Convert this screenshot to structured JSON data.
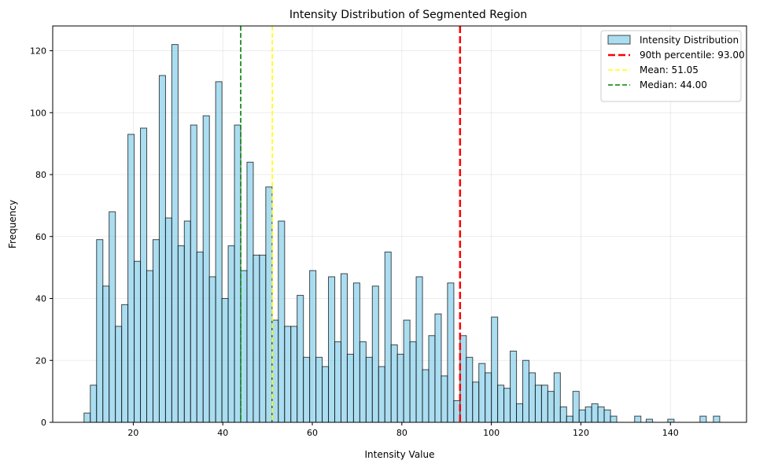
{
  "chart_data": {
    "type": "bar",
    "title": "Intensity Distribution of Segmented Region",
    "xlabel": "Intensity Value",
    "ylabel": "Frequency",
    "xlim": [
      2,
      157
    ],
    "ylim": [
      0,
      128
    ],
    "xticks": [
      20,
      40,
      60,
      80,
      100,
      120,
      140
    ],
    "yticks": [
      0,
      20,
      40,
      60,
      80,
      100,
      120
    ],
    "grid": true,
    "legend_position": "top-right",
    "bin_width": 1.41,
    "series": [
      {
        "name": "Intensity Distribution",
        "color": "#87ceeb",
        "edge_color": "#000000",
        "bins": [
          {
            "x": 9.0,
            "count": 3
          },
          {
            "x": 10.4,
            "count": 12
          },
          {
            "x": 11.8,
            "count": 59
          },
          {
            "x": 13.2,
            "count": 44
          },
          {
            "x": 14.6,
            "count": 68
          },
          {
            "x": 16.0,
            "count": 31
          },
          {
            "x": 17.4,
            "count": 38
          },
          {
            "x": 18.8,
            "count": 93
          },
          {
            "x": 20.2,
            "count": 52
          },
          {
            "x": 21.6,
            "count": 95
          },
          {
            "x": 23.0,
            "count": 49
          },
          {
            "x": 24.4,
            "count": 59
          },
          {
            "x": 25.8,
            "count": 112
          },
          {
            "x": 27.2,
            "count": 66
          },
          {
            "x": 28.6,
            "count": 122
          },
          {
            "x": 30.0,
            "count": 57
          },
          {
            "x": 31.4,
            "count": 65
          },
          {
            "x": 32.8,
            "count": 96
          },
          {
            "x": 34.2,
            "count": 55
          },
          {
            "x": 35.6,
            "count": 99
          },
          {
            "x": 37.0,
            "count": 47
          },
          {
            "x": 38.4,
            "count": 110
          },
          {
            "x": 39.8,
            "count": 40
          },
          {
            "x": 41.2,
            "count": 57
          },
          {
            "x": 42.6,
            "count": 96
          },
          {
            "x": 44.0,
            "count": 49
          },
          {
            "x": 45.4,
            "count": 84
          },
          {
            "x": 46.8,
            "count": 54
          },
          {
            "x": 48.2,
            "count": 54
          },
          {
            "x": 49.6,
            "count": 76
          },
          {
            "x": 51.0,
            "count": 33
          },
          {
            "x": 52.4,
            "count": 65
          },
          {
            "x": 53.8,
            "count": 31
          },
          {
            "x": 55.2,
            "count": 31
          },
          {
            "x": 56.6,
            "count": 41
          },
          {
            "x": 58.0,
            "count": 21
          },
          {
            "x": 59.4,
            "count": 49
          },
          {
            "x": 60.8,
            "count": 21
          },
          {
            "x": 62.2,
            "count": 18
          },
          {
            "x": 63.6,
            "count": 47
          },
          {
            "x": 65.0,
            "count": 26
          },
          {
            "x": 66.4,
            "count": 48
          },
          {
            "x": 67.8,
            "count": 22
          },
          {
            "x": 69.2,
            "count": 45
          },
          {
            "x": 70.6,
            "count": 26
          },
          {
            "x": 72.0,
            "count": 21
          },
          {
            "x": 73.4,
            "count": 44
          },
          {
            "x": 74.8,
            "count": 18
          },
          {
            "x": 76.2,
            "count": 55
          },
          {
            "x": 77.6,
            "count": 25
          },
          {
            "x": 79.0,
            "count": 22
          },
          {
            "x": 80.4,
            "count": 33
          },
          {
            "x": 81.8,
            "count": 26
          },
          {
            "x": 83.2,
            "count": 47
          },
          {
            "x": 84.6,
            "count": 17
          },
          {
            "x": 86.0,
            "count": 28
          },
          {
            "x": 87.4,
            "count": 35
          },
          {
            "x": 88.8,
            "count": 15
          },
          {
            "x": 90.2,
            "count": 45
          },
          {
            "x": 91.6,
            "count": 7
          },
          {
            "x": 93.0,
            "count": 28
          },
          {
            "x": 94.4,
            "count": 21
          },
          {
            "x": 95.8,
            "count": 13
          },
          {
            "x": 97.2,
            "count": 19
          },
          {
            "x": 98.6,
            "count": 16
          },
          {
            "x": 100.0,
            "count": 34
          },
          {
            "x": 101.4,
            "count": 12
          },
          {
            "x": 102.8,
            "count": 11
          },
          {
            "x": 104.2,
            "count": 23
          },
          {
            "x": 105.6,
            "count": 6
          },
          {
            "x": 107.0,
            "count": 20
          },
          {
            "x": 108.4,
            "count": 16
          },
          {
            "x": 109.8,
            "count": 12
          },
          {
            "x": 111.2,
            "count": 12
          },
          {
            "x": 112.6,
            "count": 10
          },
          {
            "x": 114.0,
            "count": 16
          },
          {
            "x": 115.4,
            "count": 5
          },
          {
            "x": 116.8,
            "count": 2
          },
          {
            "x": 118.2,
            "count": 10
          },
          {
            "x": 119.6,
            "count": 4
          },
          {
            "x": 121.0,
            "count": 5
          },
          {
            "x": 122.4,
            "count": 6
          },
          {
            "x": 123.8,
            "count": 5
          },
          {
            "x": 125.2,
            "count": 4
          },
          {
            "x": 126.6,
            "count": 2
          },
          {
            "x": 132.0,
            "count": 2
          },
          {
            "x": 134.6,
            "count": 1
          },
          {
            "x": 139.4,
            "count": 1
          },
          {
            "x": 146.6,
            "count": 2
          },
          {
            "x": 149.6,
            "count": 2
          }
        ]
      }
    ],
    "reference_lines": [
      {
        "name": "90th percentile: 93.00",
        "x": 93.0,
        "color": "#ff0000",
        "style": "dashed-thick"
      },
      {
        "name": "Mean: 51.05",
        "x": 51.05,
        "color": "#ffff00",
        "style": "dashed"
      },
      {
        "name": "Median: 44.00",
        "x": 44.0,
        "color": "#008000",
        "style": "dashed"
      }
    ]
  }
}
